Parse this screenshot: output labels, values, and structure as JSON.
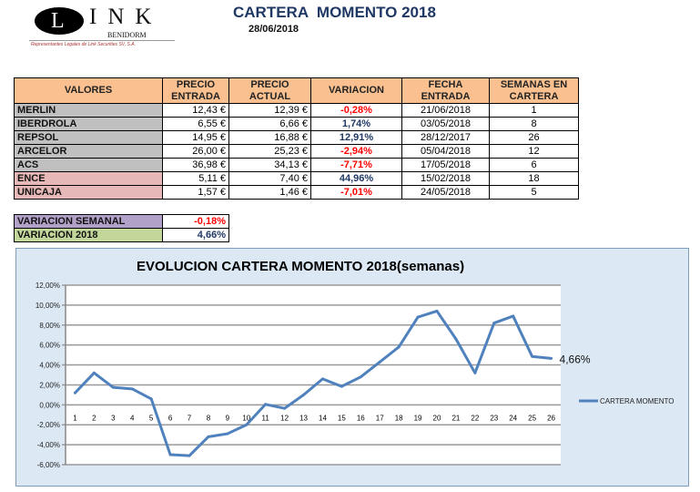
{
  "logo": {
    "letters": "LINK",
    "sub": "BENIDORM",
    "tagline": "Representantes Legales de Link Securities SV, S.A."
  },
  "header": {
    "title": "CARTERA  MOMENTO 2018",
    "date": "28/06/2018"
  },
  "table": {
    "columns": [
      "VALORES",
      "PRECIO ENTRADA",
      "PRECIO ACTUAL",
      "VARIACION",
      "FECHA ENTRADA",
      "SEMANAS EN CARTERA"
    ],
    "rows": [
      {
        "valor": "MERLIN",
        "entrada": "12,43 €",
        "actual": "12,39 €",
        "variacion": "-0,28%",
        "fecha": "21/06/2018",
        "semanas": "1",
        "group": "grey",
        "sign": "neg"
      },
      {
        "valor": "IBERDROLA",
        "entrada": "6,55 €",
        "actual": "6,66 €",
        "variacion": "1,74%",
        "fecha": "03/05/2018",
        "semanas": "8",
        "group": "grey",
        "sign": "pos"
      },
      {
        "valor": "REPSOL",
        "entrada": "14,95 €",
        "actual": "16,88 €",
        "variacion": "12,91%",
        "fecha": "28/12/2017",
        "semanas": "26",
        "group": "grey",
        "sign": "pos"
      },
      {
        "valor": "ARCELOR",
        "entrada": "26,00 €",
        "actual": "25,23 €",
        "variacion": "-2,94%",
        "fecha": "05/04/2018",
        "semanas": "12",
        "group": "grey",
        "sign": "neg"
      },
      {
        "valor": "ACS",
        "entrada": "36,98 €",
        "actual": "34,13 €",
        "variacion": "-7,71%",
        "fecha": "17/05/2018",
        "semanas": "6",
        "group": "grey",
        "sign": "neg"
      },
      {
        "valor": "ENCE",
        "entrada": "5,11 €",
        "actual": "7,40 €",
        "variacion": "44,96%",
        "fecha": "15/02/2018",
        "semanas": "18",
        "group": "pink",
        "sign": "pos"
      },
      {
        "valor": "UNICAJA",
        "entrada": "1,57 €",
        "actual": "1,46 €",
        "variacion": "-7,01%",
        "fecha": "24/05/2018",
        "semanas": "5",
        "group": "pink",
        "sign": "neg"
      }
    ]
  },
  "summary": [
    {
      "label": "VARIACION SEMANAL",
      "value": "-0,18%",
      "color": "#b1a0c7",
      "sign": "neg"
    },
    {
      "label": "VARIACION 2018",
      "value": "4,66%",
      "color": "#c4d79b",
      "sign": "pos"
    }
  ],
  "colors": {
    "header": "#fac090",
    "grey": "#c0c0c0",
    "pink": "#e6b8b7",
    "negative": "#ff0000",
    "positive": "#1f3864",
    "line": "#4f81bd"
  },
  "chart_data": {
    "type": "line",
    "title": "EVOLUCION CARTERA MOMENTO 2018(semanas)",
    "categories": [
      "1",
      "2",
      "3",
      "4",
      "5",
      "6",
      "7",
      "8",
      "9",
      "10",
      "11",
      "12",
      "13",
      "14",
      "15",
      "16",
      "17",
      "18",
      "19",
      "20",
      "21",
      "22",
      "23",
      "24",
      "25",
      "26"
    ],
    "series": [
      {
        "name": "CARTERA MOMENTO",
        "values": [
          1.2,
          3.2,
          1.75,
          1.6,
          0.6,
          -5.0,
          -5.1,
          -3.2,
          -2.9,
          -2.0,
          0.05,
          -0.35,
          1.0,
          2.6,
          1.85,
          2.8,
          4.3,
          5.8,
          8.8,
          9.4,
          6.6,
          3.2,
          8.2,
          8.9,
          4.85,
          4.66
        ]
      }
    ],
    "yticks": [
      "-6,00%",
      "-4,00%",
      "-2,00%",
      "0,00%",
      "2,00%",
      "4,00%",
      "6,00%",
      "8,00%",
      "10,00%",
      "12,00%"
    ],
    "ylim": [
      -6,
      12
    ],
    "grid": true,
    "legend": "right",
    "last_label": "4,66%"
  }
}
